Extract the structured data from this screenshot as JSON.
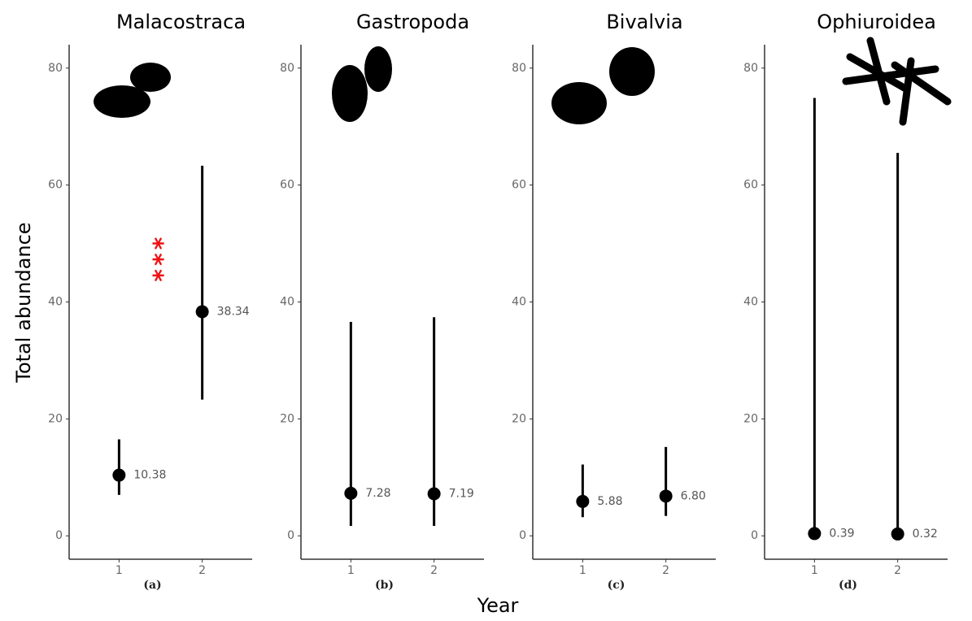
{
  "ylabel": "Total abundance",
  "xlabel": "Year",
  "chart_data": [
    {
      "type": "errorbar",
      "title": "Malacostraca",
      "panel_label": "(a)",
      "annotation": "***",
      "x": [
        1,
        2
      ],
      "values": [
        10.38,
        38.34
      ],
      "value_labels": [
        "10.38",
        "38.34"
      ],
      "lower": [
        7,
        23.3
      ],
      "upper": [
        16.5,
        63.3
      ],
      "xlim": [
        0.4,
        2.6
      ],
      "xticks": [
        1,
        2
      ],
      "ylim": [
        -4,
        84
      ],
      "yticks": [
        0,
        20,
        40,
        60,
        80
      ],
      "color": "#000000"
    },
    {
      "type": "errorbar",
      "title": "Gastropoda",
      "panel_label": "(b)",
      "x": [
        1,
        2
      ],
      "values": [
        7.28,
        7.19
      ],
      "value_labels": [
        "7.28",
        "7.19"
      ],
      "lower": [
        1.7,
        1.7
      ],
      "upper": [
        36.6,
        37.4
      ],
      "xlim": [
        0.4,
        2.6
      ],
      "xticks": [
        1,
        2
      ],
      "ylim": [
        -4,
        84
      ],
      "yticks": [
        0,
        20,
        40,
        60,
        80
      ],
      "color": "#000000"
    },
    {
      "type": "errorbar",
      "title": "Bivalvia",
      "panel_label": "(c)",
      "x": [
        1,
        2
      ],
      "values": [
        5.88,
        6.8
      ],
      "value_labels": [
        "5.88",
        "6.80"
      ],
      "lower": [
        3.2,
        3.4
      ],
      "upper": [
        12.2,
        15.2
      ],
      "xlim": [
        0.4,
        2.6
      ],
      "xticks": [
        1,
        2
      ],
      "ylim": [
        -4,
        84
      ],
      "yticks": [
        0,
        20,
        40,
        60,
        80
      ],
      "color": "#000000"
    },
    {
      "type": "errorbar",
      "title": "Ophiuroidea",
      "panel_label": "(d)",
      "x": [
        1,
        2
      ],
      "values": [
        0.39,
        0.32
      ],
      "value_labels": [
        "0.39",
        "0.32"
      ],
      "lower": [
        0,
        0
      ],
      "upper": [
        74.9,
        65.5
      ],
      "xlim": [
        0.4,
        2.6
      ],
      "xticks": [
        1,
        2
      ],
      "ylim": [
        -4,
        84
      ],
      "yticks": [
        0,
        20,
        40,
        60,
        80
      ],
      "color": "#000000"
    }
  ]
}
